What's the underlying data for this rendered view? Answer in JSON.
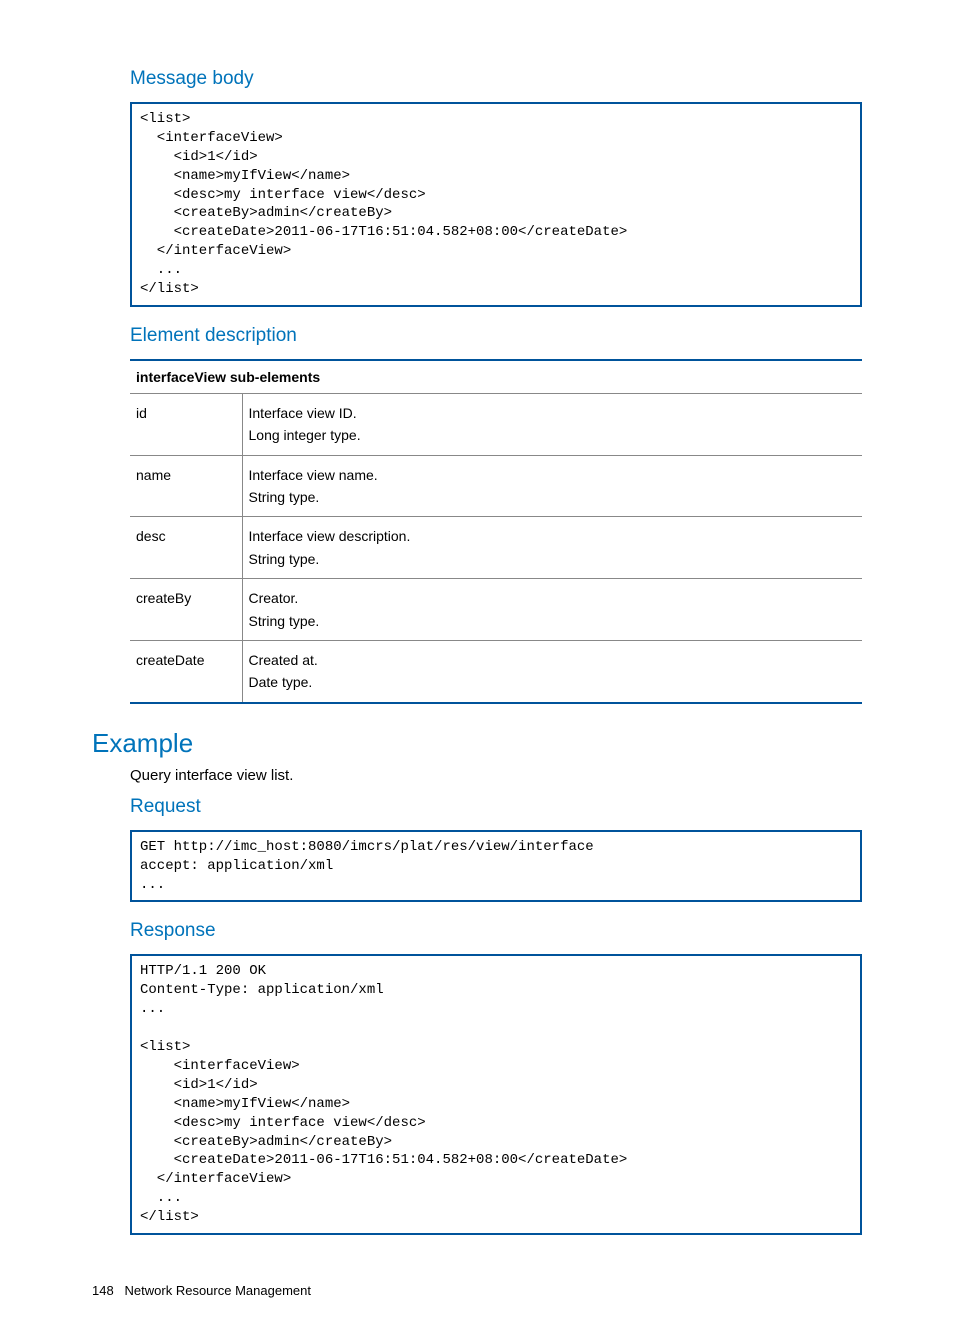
{
  "colors": {
    "heading": "#0073ba",
    "border_dark": "#00539b",
    "cell_border": "#888888",
    "background": "#ffffff",
    "text": "#000000"
  },
  "sections": {
    "msg_body_title": "Message body",
    "elem_desc_title": "Element description",
    "example_title": "Example",
    "example_text": "Query interface view list.",
    "request_title": "Request",
    "response_title": "Response"
  },
  "code": {
    "msg_body": "<list>\n  <interfaceView>\n    <id>1</id>\n    <name>myIfView</name>\n    <desc>my interface view</desc>\n    <createBy>admin</createBy>\n    <createDate>2011-06-17T16:51:04.582+08:00</createDate>\n  </interfaceView>\n  ...\n</list>",
    "request": "GET http://imc_host:8080/imcrs/plat/res/view/interface\naccept: application/xml\n...",
    "response": "HTTP/1.1 200 OK\nContent-Type: application/xml\n...\n\n<list>\n    <interfaceView>\n    <id>1</id>\n    <name>myIfView</name>\n    <desc>my interface view</desc>\n    <createBy>admin</createBy>\n    <createDate>2011-06-17T16:51:04.582+08:00</createDate>\n  </interfaceView>\n  ...\n</list>"
  },
  "table": {
    "header": "interfaceView sub-elements",
    "rows": [
      {
        "name": "id",
        "line1": "Interface view ID.",
        "line2": "Long integer type."
      },
      {
        "name": "name",
        "line1": "Interface view name.",
        "line2": "String type."
      },
      {
        "name": "desc",
        "line1": "Interface view description.",
        "line2": "String type."
      },
      {
        "name": "createBy",
        "line1": "Creator.",
        "line2": "String type."
      },
      {
        "name": "createDate",
        "line1": "Created at.",
        "line2": "Date type."
      }
    ]
  },
  "footer": {
    "page_num": "148",
    "label": "Network Resource Management"
  }
}
